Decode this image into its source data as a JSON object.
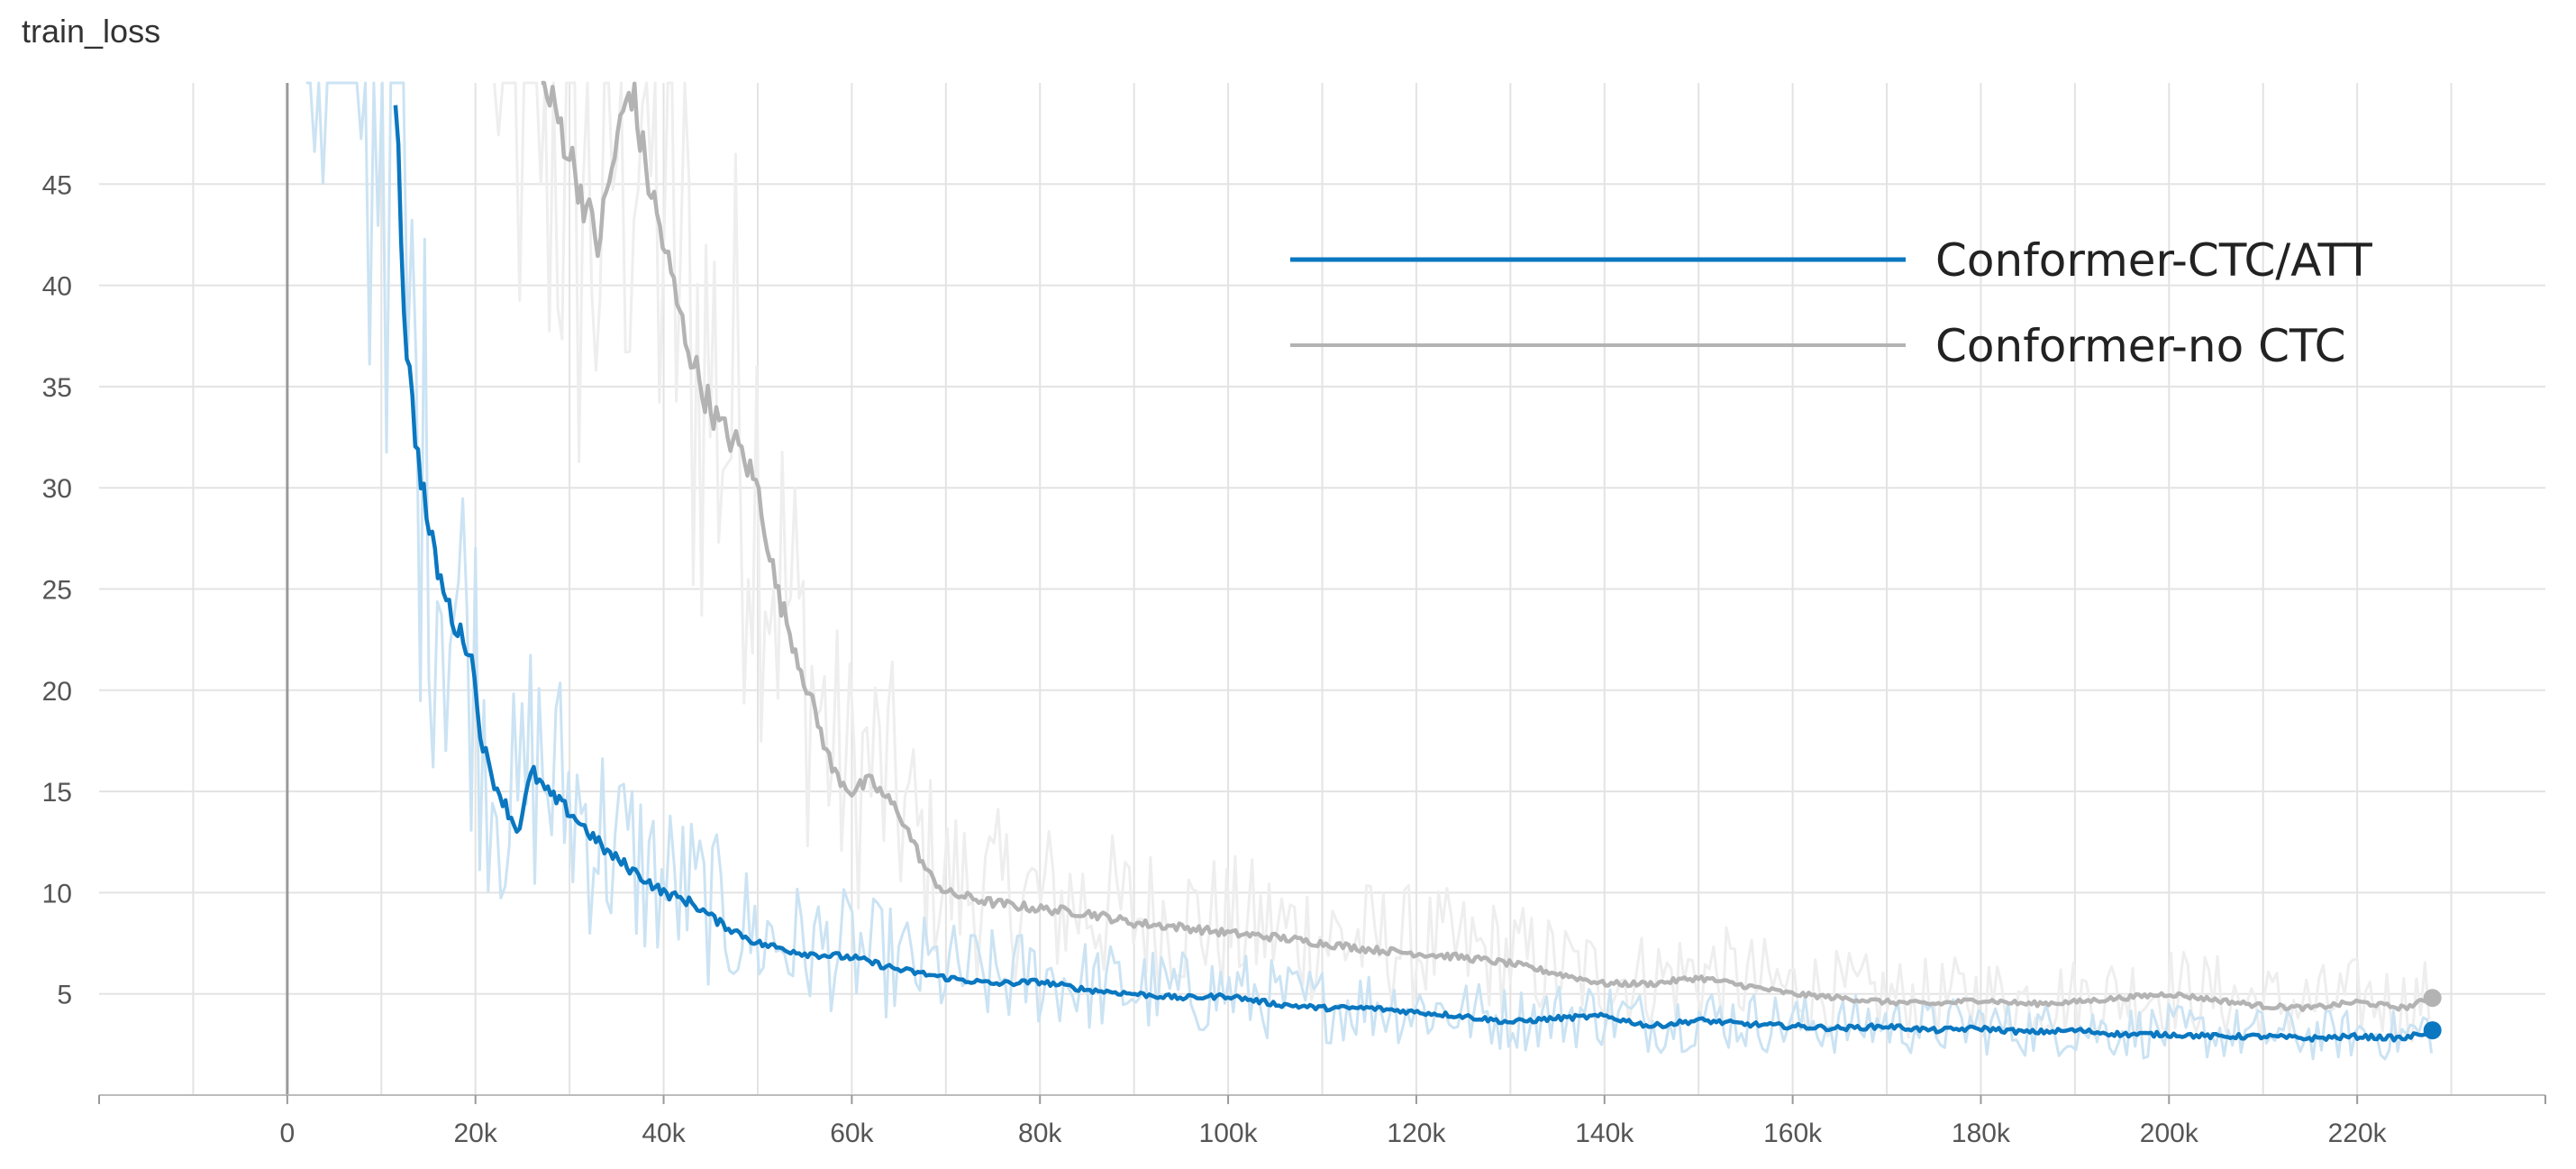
{
  "chart_data": {
    "type": "line",
    "title": "train_loss",
    "xlabel": "",
    "ylabel": "",
    "xlim": [
      -20000,
      240000
    ],
    "ylim": [
      0,
      50
    ],
    "grid": true,
    "legend_position": "top-right",
    "x_ticks": [
      0,
      20000,
      40000,
      60000,
      80000,
      100000,
      120000,
      140000,
      160000,
      180000,
      200000,
      220000
    ],
    "x_tick_labels": [
      "0",
      "20k",
      "40k",
      "60k",
      "80k",
      "100k",
      "120k",
      "140k",
      "160k",
      "180k",
      "200k",
      "220k"
    ],
    "y_ticks": [
      5,
      10,
      15,
      20,
      25,
      30,
      35,
      40,
      45
    ],
    "y_tick_labels": [
      "5",
      "10",
      "15",
      "20",
      "25",
      "30",
      "35",
      "40",
      "45"
    ],
    "series": [
      {
        "name": "Conformer-CTC/ATT",
        "color": "#0a77c0",
        "raw_color": "#cbe3f3",
        "x": [
          11500,
          12500,
          13500,
          15000,
          16500,
          18000,
          19500,
          20500,
          21500,
          23000,
          24500,
          26000,
          27500,
          30000,
          32000,
          34000,
          37000,
          40000,
          43000,
          46000,
          50000,
          55000,
          60000,
          65000,
          70000,
          75000,
          80000,
          85000,
          90000,
          95000,
          100000,
          105000,
          110000,
          115000,
          120000,
          125000,
          130000,
          135000,
          140000,
          145000,
          150000,
          155000,
          160000,
          165000,
          170000,
          175000,
          180000,
          185000,
          190000,
          195000,
          200000,
          205000,
          210000,
          215000,
          220000,
          225000,
          228000
        ],
        "values": [
          50,
          38,
          33,
          28,
          25,
          23,
          22,
          18,
          16,
          14.5,
          13,
          16,
          15,
          14,
          13,
          12,
          11,
          10,
          9.5,
          8.5,
          7.5,
          7,
          6.8,
          6.2,
          5.8,
          5.5,
          5.6,
          5.2,
          5.0,
          4.8,
          4.9,
          4.5,
          4.3,
          4.3,
          4.1,
          3.9,
          3.6,
          3.8,
          3.9,
          3.4,
          3.7,
          3.5,
          3.4,
          3.3,
          3.4,
          3.2,
          3.3,
          3.1,
          3.2,
          3.0,
          3.0,
          2.9,
          2.9,
          2.8,
          2.9,
          2.8,
          3.2
        ]
      },
      {
        "name": "Conformer-no CTC",
        "color": "#b3b3b3",
        "raw_color": "#eeeeee",
        "x": [
          27000,
          29000,
          31000,
          33000,
          35000,
          36500,
          38000,
          40000,
          42000,
          44000,
          46000,
          48000,
          50000,
          52000,
          54000,
          56000,
          58000,
          60000,
          62000,
          65000,
          68000,
          70000,
          75000,
          80000,
          85000,
          90000,
          95000,
          100000,
          105000,
          110000,
          115000,
          120000,
          125000,
          130000,
          135000,
          140000,
          145000,
          150000,
          155000,
          160000,
          165000,
          170000,
          175000,
          180000,
          185000,
          190000,
          195000,
          200000,
          205000,
          210000,
          215000,
          220000,
          225000,
          228000
        ],
        "values": [
          50,
          48,
          45,
          42,
          47,
          50,
          46,
          42,
          38,
          35,
          33,
          32,
          30,
          25,
          22,
          19,
          16,
          15,
          15.5,
          14,
          11,
          10,
          9.5,
          9.2,
          9,
          8.5,
          8.3,
          8,
          7.8,
          7.5,
          7.2,
          7,
          6.8,
          6.5,
          6.0,
          5.5,
          5.5,
          5.8,
          5.4,
          5.0,
          4.8,
          4.6,
          4.5,
          4.7,
          4.5,
          4.6,
          4.8,
          5.0,
          4.7,
          4.4,
          4.3,
          4.6,
          4.3,
          4.8
        ]
      }
    ]
  }
}
